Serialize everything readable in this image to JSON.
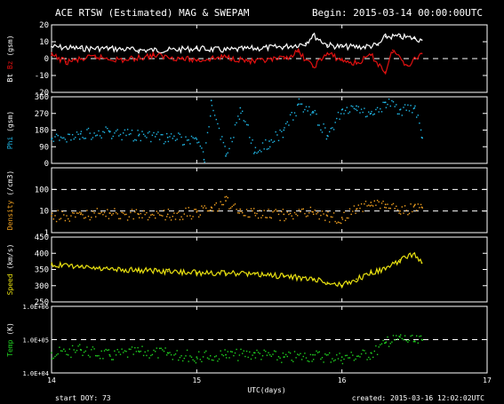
{
  "header": {
    "title": "ACE RTSW (Estimated) MAG & SWEPAM",
    "begin": "Begin: 2015-03-14 00:00:00UTC"
  },
  "footer": {
    "start_doy": "start DOY: 73",
    "created": "created: 2015-03-16 12:02:02UTC",
    "xlabel": "UTC(days)"
  },
  "colors": {
    "background": "#000000",
    "frame": "#ffffff",
    "bt": "#ffffff",
    "bz": "#e01010",
    "phi": "#20b8e8",
    "density": "#f0a020",
    "speed": "#e8e010",
    "temp": "#20d020"
  },
  "chart_data": [
    {
      "type": "line",
      "panel": "Bt Bz",
      "ylabel_parts": [
        {
          "text": "Bt",
          "color": "#ffffff"
        },
        {
          "text": " ",
          "color": "#ffffff"
        },
        {
          "text": "Bz",
          "color": "#e01010"
        },
        {
          "text": " (gsm)",
          "color": "#ffffff"
        }
      ],
      "ylim": [
        -20,
        20
      ],
      "yticks": [
        "20",
        "10",
        "0",
        "-10",
        "-20"
      ],
      "dashed_y": [
        0
      ],
      "series": [
        {
          "name": "Bt",
          "color": "#ffffff",
          "x": [
            14.0,
            14.2,
            14.4,
            14.6,
            14.8,
            15.0,
            15.2,
            15.4,
            15.6,
            15.75,
            15.8,
            15.9,
            16.0,
            16.15,
            16.25,
            16.3,
            16.4,
            16.5,
            16.55
          ],
          "y": [
            7,
            6,
            6,
            5,
            5,
            6,
            5,
            6,
            7,
            9,
            14,
            8,
            7,
            7,
            8,
            13,
            13,
            12,
            11
          ]
        },
        {
          "name": "Bz",
          "color": "#e01010",
          "x": [
            14.0,
            14.1,
            14.3,
            14.5,
            14.7,
            14.9,
            15.0,
            15.2,
            15.4,
            15.6,
            15.7,
            15.8,
            15.9,
            16.0,
            16.1,
            16.2,
            16.3,
            16.35,
            16.45,
            16.55
          ],
          "y": [
            2,
            -2,
            1,
            -1,
            2,
            0,
            -1,
            1,
            -2,
            0,
            4,
            -5,
            3,
            -1,
            -3,
            2,
            -8,
            5,
            -4,
            3
          ]
        }
      ]
    },
    {
      "type": "scatter",
      "panel": "Phi",
      "ylabel_parts": [
        {
          "text": "Phi",
          "color": "#20b8e8"
        },
        {
          "text": " (gsm)",
          "color": "#ffffff"
        }
      ],
      "ylim": [
        0,
        360
      ],
      "yticks": [
        "360",
        "270",
        "180",
        "90",
        "0"
      ],
      "series": [
        {
          "name": "Phi",
          "color": "#20b8e8",
          "x": [
            14.0,
            14.2,
            14.4,
            14.6,
            14.8,
            15.0,
            15.05,
            15.1,
            15.2,
            15.3,
            15.4,
            15.5,
            15.6,
            15.7,
            15.8,
            15.9,
            16.0,
            16.1,
            16.2,
            16.3,
            16.4,
            16.5,
            16.55
          ],
          "y": [
            130,
            160,
            170,
            150,
            140,
            130,
            20,
            340,
            40,
            300,
            60,
            120,
            180,
            320,
            280,
            150,
            290,
            310,
            270,
            330,
            290,
            300,
            140
          ]
        }
      ]
    },
    {
      "type": "scatter",
      "panel": "Density",
      "ylabel_parts": [
        {
          "text": "Density",
          "color": "#f0a020"
        },
        {
          "text": " (/cm3)",
          "color": "#ffffff"
        }
      ],
      "yscale": "log",
      "ylim": [
        1,
        1000
      ],
      "yticks": [
        "100",
        "10",
        "1"
      ],
      "dashed_y": [
        100,
        10
      ],
      "series": [
        {
          "name": "Density",
          "color": "#f0a020",
          "x": [
            14.0,
            14.2,
            14.4,
            14.6,
            14.8,
            15.0,
            15.1,
            15.2,
            15.3,
            15.4,
            15.6,
            15.8,
            15.9,
            16.0,
            16.1,
            16.2,
            16.3,
            16.4,
            16.5,
            16.55
          ],
          "y": [
            6,
            7,
            8,
            7,
            7,
            9,
            15,
            30,
            12,
            8,
            7,
            9,
            6,
            5,
            12,
            25,
            20,
            10,
            18,
            15
          ]
        }
      ]
    },
    {
      "type": "line",
      "panel": "Speed",
      "ylabel_parts": [
        {
          "text": "Speed",
          "color": "#e8e010"
        },
        {
          "text": " (km/s)",
          "color": "#ffffff"
        }
      ],
      "ylim": [
        250,
        450
      ],
      "yticks": [
        "450",
        "400",
        "350",
        "300",
        "250"
      ],
      "series": [
        {
          "name": "Speed",
          "color": "#e8e010",
          "x": [
            14.0,
            14.2,
            14.4,
            14.6,
            14.8,
            15.0,
            15.2,
            15.4,
            15.6,
            15.8,
            15.9,
            16.0,
            16.1,
            16.2,
            16.3,
            16.4,
            16.5,
            16.55
          ],
          "y": [
            365,
            358,
            350,
            348,
            344,
            340,
            338,
            335,
            330,
            320,
            310,
            300,
            320,
            340,
            350,
            380,
            400,
            370
          ]
        }
      ]
    },
    {
      "type": "scatter",
      "panel": "Temp",
      "ylabel_parts": [
        {
          "text": "Temp",
          "color": "#20d020"
        },
        {
          "text": " (K)",
          "color": "#ffffff"
        }
      ],
      "yscale": "log",
      "ylim": [
        10000,
        1000000
      ],
      "yticks": [
        "1.0E+06",
        "1.0E+05",
        "1.0E+04"
      ],
      "dashed_y": [
        100000
      ],
      "series": [
        {
          "name": "Temp",
          "color": "#20d020",
          "x": [
            14.0,
            14.2,
            14.4,
            14.6,
            14.8,
            15.0,
            15.2,
            15.4,
            15.6,
            15.8,
            16.0,
            16.2,
            16.3,
            16.4,
            16.5,
            16.55
          ],
          "y": [
            40000,
            50000,
            35000,
            45000,
            40000,
            30000,
            35000,
            40000,
            30000,
            35000,
            30000,
            40000,
            80000,
            120000,
            90000,
            100000
          ]
        }
      ]
    }
  ],
  "xaxis": {
    "xlim": [
      14,
      17
    ],
    "ticks": [
      "14",
      "15",
      "16",
      "17"
    ]
  }
}
